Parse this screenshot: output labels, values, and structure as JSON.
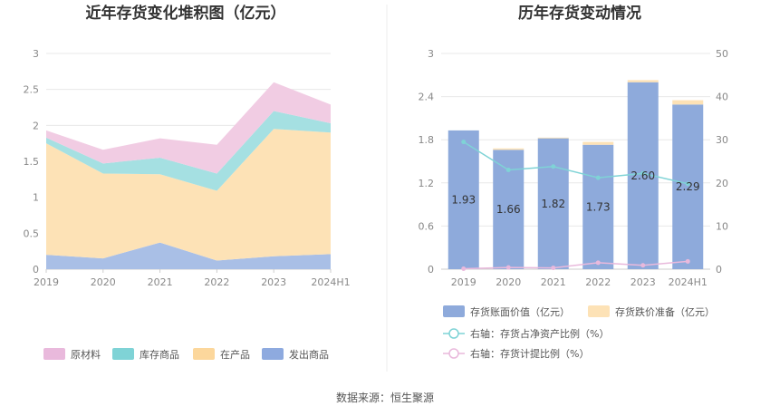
{
  "source": "数据来源：恒生聚源",
  "chart_data": [
    {
      "type": "area",
      "stacked": true,
      "title": "近年存货变化堆积图（亿元）",
      "categories": [
        "2019",
        "2020",
        "2021",
        "2022",
        "2023",
        "2024H1"
      ],
      "ylim": [
        0,
        3
      ],
      "yticks": [
        "0",
        "0.5",
        "1",
        "1.5",
        "2",
        "2.5",
        "3"
      ],
      "series": [
        {
          "name": "发出商品",
          "color": "#a9bfe6",
          "values": [
            0.2,
            0.15,
            0.37,
            0.12,
            0.18,
            0.21
          ]
        },
        {
          "name": "在产品",
          "color": "#fde2b6",
          "values": [
            1.55,
            1.18,
            0.95,
            0.97,
            1.77,
            1.69
          ]
        },
        {
          "name": "库存商品",
          "color": "#a5e0e2",
          "values": [
            0.08,
            0.14,
            0.23,
            0.24,
            0.25,
            0.13
          ]
        },
        {
          "name": "原材料",
          "color": "#f1cce3",
          "values": [
            0.1,
            0.19,
            0.27,
            0.4,
            0.4,
            0.26
          ]
        }
      ],
      "legend": [
        {
          "name": "原材料",
          "color": "#e9b9dc"
        },
        {
          "name": "库存商品",
          "color": "#7fd3d6"
        },
        {
          "name": "在产品",
          "color": "#fcd79c"
        },
        {
          "name": "发出商品",
          "color": "#8eaadf"
        }
      ]
    },
    {
      "type": "bar",
      "title": "历年存货变动情况",
      "categories": [
        "2019",
        "2020",
        "2021",
        "2022",
        "2023",
        "2024H1"
      ],
      "ylim": [
        0,
        3
      ],
      "yticks": [
        "0",
        "0.6",
        "1.2",
        "1.8",
        "2.4",
        "3"
      ],
      "y2lim": [
        0,
        50
      ],
      "y2ticks": [
        "0",
        "10",
        "20",
        "30",
        "40",
        "50"
      ],
      "bars": {
        "name": "存货账面价值（亿元）",
        "color": "#8eaadb",
        "values": [
          1.93,
          1.66,
          1.82,
          1.73,
          2.6,
          2.29
        ],
        "labels": [
          "1.93",
          "1.66",
          "1.82",
          "1.73",
          "2.60",
          "2.29"
        ]
      },
      "stack": {
        "name": "存货跌价准备（亿元）",
        "color": "#fde2b6",
        "values": [
          0.0,
          0.02,
          0.01,
          0.04,
          0.03,
          0.06
        ]
      },
      "lines": [
        {
          "name": "右轴：存货占净资产比例（%）",
          "color": "#7fd3d6",
          "values": [
            29.5,
            23.0,
            23.8,
            21.2,
            22.2,
            19.8
          ]
        },
        {
          "name": "右轴：存货计提比例（%）",
          "color": "#e9b9dc",
          "values": [
            0.1,
            0.4,
            0.3,
            1.5,
            0.9,
            1.8
          ]
        }
      ]
    }
  ]
}
